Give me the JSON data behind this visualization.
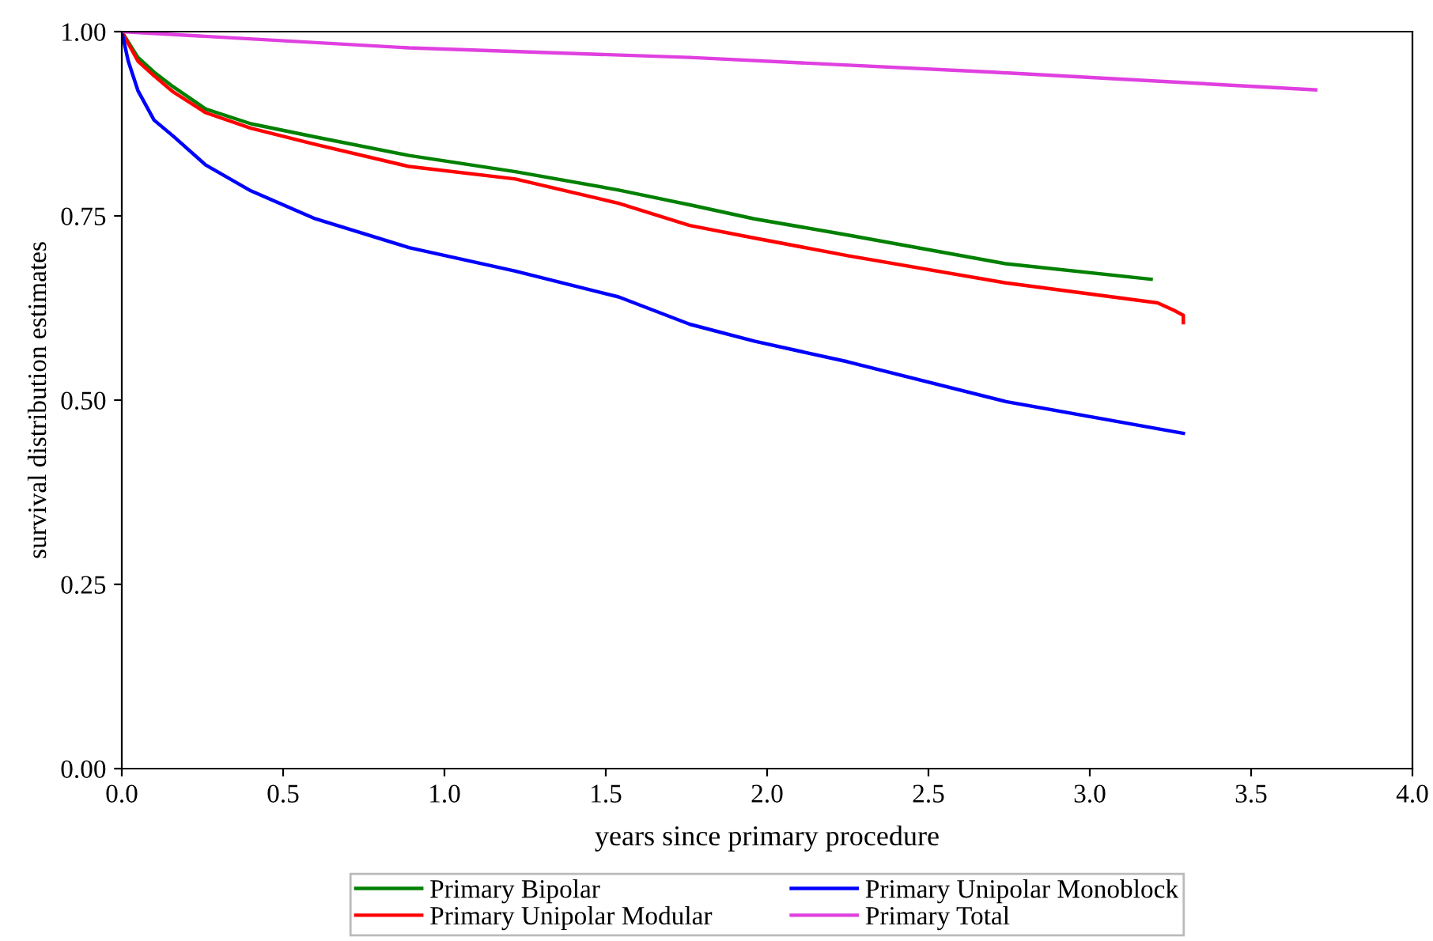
{
  "chart_data": {
    "type": "line",
    "xlabel": "years since primary procedure",
    "ylabel": "survival distribution estimates",
    "xlim": [
      0,
      4.0
    ],
    "xticks": [
      {
        "value": 0,
        "label": "0.0"
      },
      {
        "value": 0.5,
        "label": "0.5"
      },
      {
        "value": 1,
        "label": "1.0"
      },
      {
        "value": 1.5,
        "label": "1.5"
      },
      {
        "value": 2,
        "label": "2.0"
      },
      {
        "value": 2.5,
        "label": "2.5"
      },
      {
        "value": 3,
        "label": "3.0"
      },
      {
        "value": 3.5,
        "label": "3.5"
      },
      {
        "value": 4,
        "label": "4.0"
      }
    ],
    "ylim": [
      0,
      1.0
    ],
    "yticks": [
      {
        "value": 0,
        "label": "0.00"
      },
      {
        "value": 0.25,
        "label": "0.25"
      },
      {
        "value": 0.5,
        "label": "0.50"
      },
      {
        "value": 0.75,
        "label": "0.75"
      },
      {
        "value": 1,
        "label": "1.00"
      }
    ],
    "grid": false,
    "legend": "bottom",
    "marker": "none",
    "line_style": "solid",
    "series": [
      {
        "name": "Primary Bipolar",
        "color": "#008000",
        "x": [
          0,
          0.05,
          0.1,
          0.16,
          0.26,
          0.4,
          0.6,
          0.89,
          1.22,
          1.54,
          1.76,
          1.96,
          2.25,
          2.74,
          3.19
        ],
        "values": [
          1.0,
          0.965,
          0.945,
          0.925,
          0.895,
          0.875,
          0.857,
          0.832,
          0.81,
          0.785,
          0.765,
          0.746,
          0.724,
          0.685,
          0.664
        ]
      },
      {
        "name": "Primary Unipolar Modular",
        "color": "#ff0000",
        "x": [
          0,
          0.05,
          0.1,
          0.16,
          0.26,
          0.4,
          0.6,
          0.89,
          1.22,
          1.54,
          1.76,
          1.96,
          2.25,
          2.74,
          3.21,
          3.26,
          3.29,
          3.29
        ],
        "values": [
          1.0,
          0.96,
          0.94,
          0.918,
          0.89,
          0.869,
          0.847,
          0.817,
          0.8,
          0.767,
          0.737,
          0.72,
          0.696,
          0.659,
          0.632,
          0.622,
          0.615,
          0.605
        ]
      },
      {
        "name": "Primary Unipolar Monoblock",
        "color": "#0000ff",
        "x": [
          0,
          0.02,
          0.05,
          0.1,
          0.16,
          0.26,
          0.4,
          0.6,
          0.89,
          1.22,
          1.54,
          1.76,
          1.96,
          2.25,
          2.74,
          3.29
        ],
        "values": [
          1.0,
          0.96,
          0.92,
          0.88,
          0.858,
          0.819,
          0.784,
          0.746,
          0.707,
          0.675,
          0.64,
          0.603,
          0.58,
          0.552,
          0.498,
          0.455
        ]
      },
      {
        "name": "Primary Total",
        "color": "#e040e0",
        "x": [
          0,
          0.89,
          1.76,
          2.7,
          3.7
        ],
        "values": [
          1.0,
          0.978,
          0.965,
          0.945,
          0.921
        ]
      }
    ]
  }
}
